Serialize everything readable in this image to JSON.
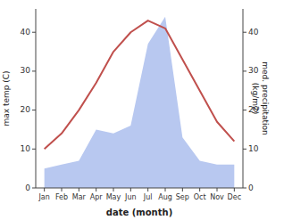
{
  "chart_data": {
    "type": "line",
    "categories": [
      "Jan",
      "Feb",
      "Mar",
      "Apr",
      "May",
      "Jun",
      "Jul",
      "Aug",
      "Sep",
      "Oct",
      "Nov",
      "Dec"
    ],
    "series": [
      {
        "type": "area",
        "color": "#b8c8f0",
        "values": [
          5,
          6,
          7,
          15,
          14,
          16,
          37,
          44,
          13,
          7,
          6,
          6
        ]
      },
      {
        "type": "line",
        "color": "#c0504d",
        "values": [
          10,
          14,
          20,
          27,
          35,
          40,
          43,
          41,
          33,
          25,
          17,
          12
        ]
      }
    ],
    "xlabel": "date (month)",
    "ylabel": "max temp (C)",
    "y2label": "med. precipitation\n(kg/m2)",
    "ylim": [
      0,
      46
    ],
    "yticks": [
      0,
      10,
      20,
      30,
      40
    ],
    "y2lim": [
      0,
      46
    ],
    "y2ticks": [
      0,
      10,
      20,
      30,
      40
    ]
  }
}
